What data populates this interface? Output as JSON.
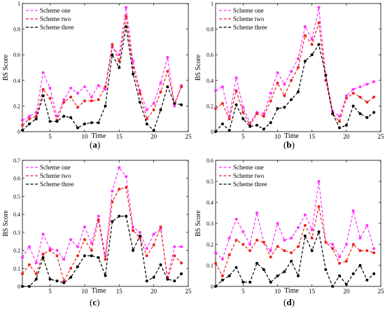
{
  "chart_data": [
    {
      "type": "line",
      "caption": "a",
      "xlabel": "Time",
      "ylabel": "BS Score",
      "xlim": [
        1,
        25
      ],
      "ylim": [
        0,
        1
      ],
      "xticks": [
        5,
        10,
        15,
        20,
        25
      ],
      "yticks": [
        0,
        0.2,
        0.4,
        0.6,
        0.8,
        1
      ],
      "ytick_labels": [
        "0",
        "0.2",
        "0.4",
        "0.6",
        "0.8",
        "1"
      ],
      "legend_position": "top-left",
      "x": [
        1,
        2,
        3,
        4,
        5,
        6,
        7,
        8,
        9,
        10,
        11,
        12,
        13,
        14,
        15,
        16,
        17,
        18,
        19,
        20,
        21,
        22,
        23,
        24
      ],
      "series": [
        {
          "name": "Scheme one",
          "color": "#ff33ff",
          "values": [
            0.09,
            0.12,
            0.15,
            0.46,
            0.34,
            0.12,
            0.25,
            0.34,
            0.3,
            0.35,
            0.27,
            0.36,
            0.33,
            0.66,
            0.6,
            0.97,
            0.55,
            0.32,
            0.17,
            0.22,
            0.38,
            0.58,
            0.2,
            0.36
          ]
        },
        {
          "name": "Scheme two",
          "color": "#ee2222",
          "values": [
            0.05,
            0.1,
            0.12,
            0.33,
            0.26,
            0.09,
            0.23,
            0.27,
            0.19,
            0.24,
            0.24,
            0.25,
            0.35,
            0.68,
            0.55,
            0.9,
            0.5,
            0.3,
            0.1,
            0.17,
            0.31,
            0.47,
            0.22,
            0.35
          ]
        },
        {
          "name": "Scheme three",
          "color": "#000000",
          "values": [
            0.01,
            0.06,
            0.1,
            0.28,
            0.08,
            0.08,
            0.12,
            0.11,
            0.03,
            0.06,
            0.07,
            0.07,
            0.2,
            0.6,
            0.5,
            0.82,
            0.45,
            0.23,
            0.06,
            0.01,
            0.17,
            0.35,
            0.22,
            0.21
          ]
        }
      ]
    },
    {
      "type": "line",
      "caption": "b",
      "xlabel": "Time",
      "ylabel": "BS Score",
      "xlim": [
        1,
        25
      ],
      "ylim": [
        0,
        1
      ],
      "xticks": [
        5,
        10,
        15,
        20,
        25
      ],
      "yticks": [
        0,
        0.2,
        0.4,
        0.6,
        0.8,
        1
      ],
      "ytick_labels": [
        "0",
        "0.2",
        "0.4",
        "0.6",
        "0.8",
        "1"
      ],
      "legend_position": "top-left",
      "x": [
        1,
        2,
        3,
        4,
        5,
        6,
        7,
        8,
        9,
        10,
        11,
        12,
        13,
        14,
        15,
        16,
        17,
        18,
        19,
        20,
        21,
        22,
        23,
        24
      ],
      "series": [
        {
          "name": "Scheme one",
          "color": "#ff33ff",
          "values": [
            0.32,
            0.35,
            0.12,
            0.42,
            0.19,
            0.07,
            0.15,
            0.14,
            0.3,
            0.46,
            0.37,
            0.47,
            0.57,
            0.82,
            0.72,
            0.97,
            0.44,
            0.16,
            0.12,
            0.28,
            0.33,
            0.35,
            0.37,
            0.39
          ]
        },
        {
          "name": "Scheme two",
          "color": "#ee2222",
          "values": [
            0.18,
            0.22,
            0.1,
            0.32,
            0.15,
            0.05,
            0.14,
            0.12,
            0.24,
            0.38,
            0.28,
            0.4,
            0.5,
            0.75,
            0.68,
            0.85,
            0.4,
            0.14,
            0.08,
            0.26,
            0.3,
            0.27,
            0.23,
            0.27
          ]
        },
        {
          "name": "Scheme three",
          "color": "#000000",
          "values": [
            0.0,
            0.06,
            0.01,
            0.21,
            0.1,
            0.04,
            0.05,
            0.02,
            0.07,
            0.18,
            0.19,
            0.25,
            0.31,
            0.55,
            0.6,
            0.68,
            0.44,
            0.14,
            0.03,
            0.05,
            0.2,
            0.14,
            0.11,
            0.15
          ]
        }
      ]
    },
    {
      "type": "line",
      "caption": "c",
      "xlabel": "Time",
      "ylabel": "BS Score",
      "xlim": [
        1,
        25
      ],
      "ylim": [
        0,
        0.7
      ],
      "xticks": [
        5,
        10,
        15,
        20,
        25
      ],
      "yticks": [
        0,
        0.1,
        0.2,
        0.3,
        0.4,
        0.5,
        0.6,
        0.7
      ],
      "ytick_labels": [
        "0",
        "0.1",
        "0.2",
        "0.3",
        "0.4",
        "0.5",
        "0.6",
        "0.7"
      ],
      "legend_position": "top-left",
      "x": [
        1,
        2,
        3,
        4,
        5,
        6,
        7,
        8,
        9,
        10,
        11,
        12,
        13,
        14,
        15,
        16,
        17,
        18,
        19,
        20,
        21,
        22,
        23,
        24
      ],
      "series": [
        {
          "name": "Scheme one",
          "color": "#ff33ff",
          "values": [
            0.16,
            0.22,
            0.13,
            0.29,
            0.21,
            0.2,
            0.15,
            0.26,
            0.22,
            0.33,
            0.24,
            0.39,
            0.17,
            0.53,
            0.66,
            0.61,
            0.33,
            0.3,
            0.21,
            0.29,
            0.32,
            0.05,
            0.22,
            0.22
          ]
        },
        {
          "name": "Scheme two",
          "color": "#ee2222",
          "values": [
            0.07,
            0.12,
            0.07,
            0.18,
            0.2,
            0.17,
            0.03,
            0.1,
            0.17,
            0.26,
            0.2,
            0.37,
            0.15,
            0.47,
            0.54,
            0.55,
            0.31,
            0.27,
            0.17,
            0.23,
            0.33,
            0.04,
            0.17,
            0.13
          ]
        },
        {
          "name": "Scheme three",
          "color": "#000000",
          "values": [
            0.0,
            0.0,
            0.04,
            0.16,
            0.04,
            0.03,
            0.02,
            0.05,
            0.11,
            0.17,
            0.17,
            0.16,
            0.06,
            0.36,
            0.39,
            0.39,
            0.2,
            0.28,
            0.03,
            0.05,
            0.12,
            0.04,
            0.03,
            0.07
          ]
        }
      ]
    },
    {
      "type": "line",
      "caption": "d",
      "xlabel": "Time",
      "ylabel": "BS Score",
      "xlim": [
        1,
        25
      ],
      "ylim": [
        0,
        0.6
      ],
      "xticks": [
        5,
        10,
        15,
        20,
        25
      ],
      "yticks": [
        0,
        0.1,
        0.2,
        0.3,
        0.4,
        0.5,
        0.6
      ],
      "ytick_labels": [
        "0",
        "0.1",
        "0.2",
        "0.3",
        "0.4",
        "0.5",
        "0.6"
      ],
      "legend_position": "top-left",
      "x": [
        1,
        2,
        3,
        4,
        5,
        6,
        7,
        8,
        9,
        10,
        11,
        12,
        13,
        14,
        15,
        16,
        17,
        18,
        19,
        20,
        21,
        22,
        23,
        24
      ],
      "series": [
        {
          "name": "Scheme one",
          "color": "#ff33ff",
          "values": [
            0.16,
            0.13,
            0.23,
            0.32,
            0.26,
            0.2,
            0.35,
            0.21,
            0.17,
            0.3,
            0.22,
            0.23,
            0.28,
            0.34,
            0.27,
            0.5,
            0.21,
            0.2,
            0.14,
            0.2,
            0.36,
            0.23,
            0.29,
            0.18
          ]
        },
        {
          "name": "Scheme two",
          "color": "#ee2222",
          "values": [
            0.11,
            0.05,
            0.15,
            0.22,
            0.2,
            0.17,
            0.22,
            0.21,
            0.14,
            0.19,
            0.17,
            0.16,
            0.19,
            0.29,
            0.23,
            0.38,
            0.21,
            0.18,
            0.11,
            0.12,
            0.2,
            0.17,
            0.17,
            0.16
          ]
        },
        {
          "name": "Scheme three",
          "color": "#000000",
          "values": [
            0.0,
            0.03,
            0.05,
            0.09,
            0.02,
            0.02,
            0.11,
            0.08,
            0.02,
            0.05,
            0.07,
            0.12,
            0.05,
            0.24,
            0.17,
            0.26,
            0.08,
            0.0,
            0.05,
            0.01,
            0.06,
            0.1,
            0.03,
            0.06
          ]
        }
      ]
    }
  ]
}
